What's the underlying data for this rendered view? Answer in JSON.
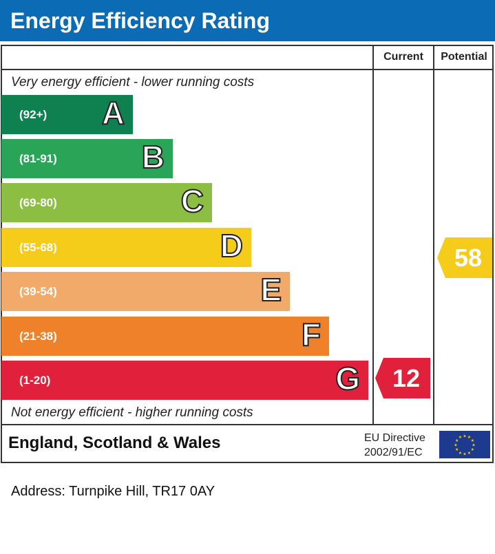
{
  "title": "Energy Efficiency Rating",
  "columns": {
    "current": "Current",
    "potential": "Potential"
  },
  "top_note": "Very energy efficient - lower running costs",
  "bottom_note": "Not energy efficient - higher running costs",
  "region": "England, Scotland & Wales",
  "directive": {
    "line1": "EU Directive",
    "line2": "2002/91/EC"
  },
  "address": "Address: Turnpike Hill, TR17 0AY",
  "chart_data": {
    "type": "bar",
    "bands": [
      {
        "letter": "A",
        "range": "(92+)",
        "color": "#0f8050"
      },
      {
        "letter": "B",
        "range": "(81-91)",
        "color": "#2aa457"
      },
      {
        "letter": "C",
        "range": "(69-80)",
        "color": "#8dbe44"
      },
      {
        "letter": "D",
        "range": "(55-68)",
        "color": "#f6cc1b"
      },
      {
        "letter": "E",
        "range": "(39-54)",
        "color": "#f2aa6b"
      },
      {
        "letter": "F",
        "range": "(21-38)",
        "color": "#ee8129"
      },
      {
        "letter": "G",
        "range": "(1-20)",
        "color": "#e1203b"
      }
    ],
    "current": {
      "value": "12",
      "band": "G",
      "color": "#e1203b"
    },
    "potential": {
      "value": "58",
      "band": "D",
      "color": "#f6cc1b"
    }
  }
}
